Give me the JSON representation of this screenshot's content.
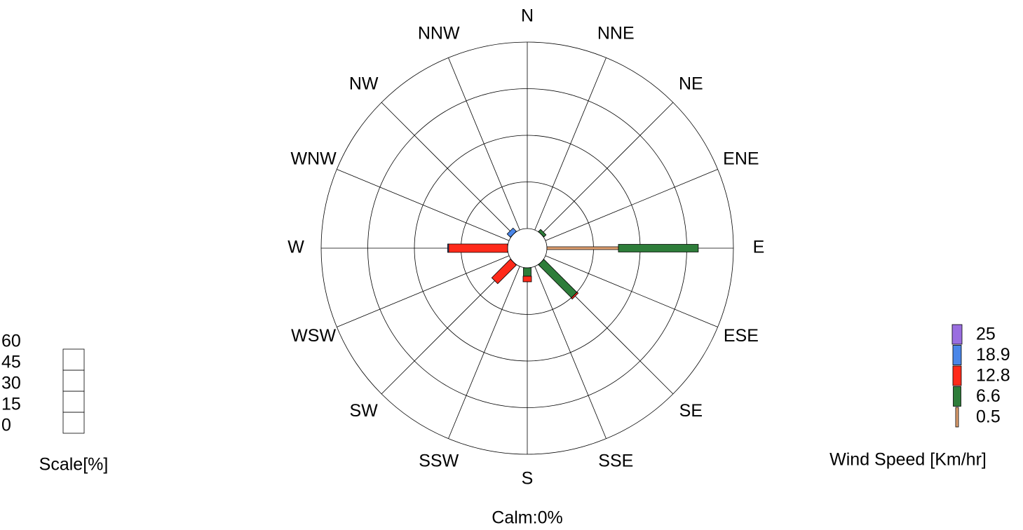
{
  "chart_data": {
    "type": "windrose",
    "categories": [
      "N",
      "NNE",
      "NE",
      "ENE",
      "E",
      "ESE",
      "SE",
      "SSE",
      "S",
      "SSW",
      "SW",
      "WSW",
      "W",
      "WNW",
      "NW",
      "NNW"
    ],
    "series": [
      {
        "name": "0.5",
        "color": "#e0a070",
        "values": [
          0,
          0,
          0,
          0,
          23,
          0,
          0,
          0,
          0,
          0,
          0,
          0,
          0,
          0,
          0,
          0
        ]
      },
      {
        "name": "6.6",
        "color": "#2e7d3a",
        "values": [
          0,
          0,
          1,
          0,
          25.7,
          0,
          15,
          0,
          2.7,
          0,
          0,
          0,
          0,
          0,
          0,
          0
        ]
      },
      {
        "name": "12.8",
        "color": "#ff2a1a",
        "values": [
          0,
          0,
          0,
          0,
          0,
          0,
          0.5,
          0,
          1.8,
          0,
          8.5,
          0,
          19,
          0,
          0,
          0
        ]
      },
      {
        "name": "18.9",
        "color": "#4a86e8",
        "values": [
          0,
          0,
          0,
          0,
          0,
          0,
          0,
          0,
          0,
          0,
          0,
          0,
          0.3,
          0,
          1.5,
          0
        ]
      },
      {
        "name": "25",
        "color": "#9a6ee0",
        "values": [
          0,
          0,
          0,
          0,
          0,
          0,
          0,
          0,
          0,
          0,
          0,
          0,
          0,
          0,
          0,
          0
        ]
      }
    ],
    "rlim": [
      0,
      60
    ],
    "rticks": [
      0,
      15,
      30,
      45,
      60
    ],
    "scale_label": "Scale[%]",
    "legend_title": "Wind Speed [Km/hr]",
    "calm_label": "Calm:0%"
  }
}
